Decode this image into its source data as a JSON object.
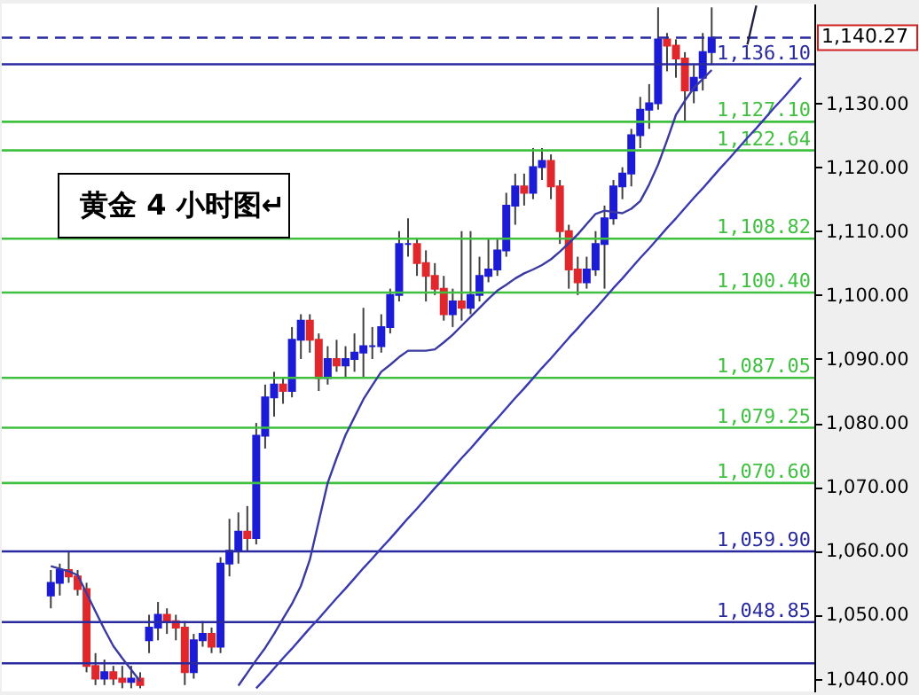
{
  "chart_data": {
    "type": "candlestick",
    "annotations": [
      "黄金 4 小时图↵"
    ],
    "categories": [
      null,
      null,
      null,
      null,
      null,
      null,
      null,
      null,
      null,
      null,
      null,
      null,
      null,
      null,
      null,
      null,
      null,
      null,
      null,
      null,
      null,
      null,
      null,
      null,
      null,
      null,
      null,
      null,
      null,
      null,
      null,
      null,
      null,
      null,
      null,
      null,
      null,
      null,
      null,
      null,
      null,
      null,
      null,
      null,
      null,
      null,
      null,
      null,
      null,
      null,
      null,
      null,
      null,
      null,
      null,
      null,
      null,
      null,
      null,
      null,
      null,
      null,
      null,
      null,
      null,
      null,
      null,
      null,
      null,
      null,
      null,
      null,
      null,
      null,
      null,
      null,
      null,
      null,
      null,
      null,
      null,
      null,
      null,
      null,
      null,
      null,
      null,
      null,
      null
    ],
    "ohlc": [
      null,
      null,
      null,
      null,
      [
        1053,
        1057,
        1051,
        1055
      ],
      [
        1055,
        1058,
        1053,
        1057
      ],
      [
        1057,
        1060,
        1055,
        1056
      ],
      [
        1056,
        1057,
        1053,
        1054
      ],
      [
        1054,
        1055,
        1041,
        1042
      ],
      [
        1042,
        1044,
        1039,
        1040
      ],
      [
        1040,
        1043,
        1039,
        1041
      ],
      [
        1041,
        1042,
        1039,
        1040
      ],
      [
        1040,
        1042,
        1038.5,
        1039.5
      ],
      [
        1039.5,
        1042,
        1038.5,
        1040
      ],
      [
        1040,
        1041,
        1038.5,
        1039
      ],
      [
        1046,
        1050,
        1044,
        1048
      ],
      [
        1048,
        1052,
        1046,
        1050
      ],
      [
        1050,
        1051,
        1047,
        1049
      ],
      [
        1049,
        1050,
        1046,
        1048
      ],
      [
        1048,
        1049,
        1039,
        1041
      ],
      [
        1041,
        1047,
        1040,
        1046
      ],
      [
        1046,
        1049,
        1045,
        1047
      ],
      [
        1047,
        1048,
        1044,
        1045
      ],
      [
        1045,
        1059,
        1044,
        1058
      ],
      [
        1058,
        1065,
        1056,
        1060
      ],
      [
        1060,
        1066,
        1058,
        1063
      ],
      [
        1063,
        1067,
        1060,
        1062
      ],
      [
        1062,
        1080,
        1061,
        1078
      ],
      [
        1078,
        1086,
        1076,
        1084
      ],
      [
        1084,
        1088,
        1081,
        1086
      ],
      [
        1086,
        1087,
        1083,
        1085
      ],
      [
        1085,
        1095,
        1084,
        1093
      ],
      [
        1093,
        1097,
        1090,
        1096
      ],
      [
        1096,
        1097,
        1091,
        1093
      ],
      [
        1093,
        1094,
        1085,
        1087
      ],
      [
        1087,
        1092,
        1086,
        1090
      ],
      [
        1090,
        1093,
        1088,
        1089
      ],
      [
        1089,
        1092,
        1087,
        1090
      ],
      [
        1090,
        1094,
        1088,
        1091
      ],
      [
        1091,
        1098,
        1087,
        1092
      ],
      [
        1092,
        1095,
        1090,
        1092
      ],
      [
        1092,
        1097,
        1091,
        1095
      ],
      [
        1095,
        1101,
        1094,
        1100
      ],
      [
        1100,
        1110,
        1099,
        1108
      ],
      [
        1108,
        1112,
        1106,
        1108
      ],
      [
        1108,
        1109,
        1103,
        1105
      ],
      [
        1105,
        1107,
        1099,
        1103
      ],
      [
        1103,
        1105,
        1100,
        1101
      ],
      [
        1101,
        1103,
        1096,
        1097
      ],
      [
        1097,
        1101,
        1095,
        1099
      ],
      [
        1099,
        1110,
        1096,
        1098
      ],
      [
        1098,
        1110,
        1097,
        1100
      ],
      [
        1100,
        1106,
        1099,
        1103
      ],
      [
        1103,
        1109,
        1102,
        1104
      ],
      [
        1104,
        1109,
        1103,
        1107
      ],
      [
        1107,
        1116,
        1106,
        1114
      ],
      [
        1114,
        1119,
        1111,
        1117
      ],
      [
        1117,
        1119,
        1114,
        1116
      ],
      [
        1116,
        1123,
        1115,
        1120
      ],
      [
        1120,
        1123,
        1118,
        1121
      ],
      [
        1121,
        1122,
        1115,
        1117
      ],
      [
        1117,
        1118,
        1108,
        1110
      ],
      [
        1110,
        1111,
        1101,
        1104
      ],
      [
        1104,
        1106,
        1100,
        1102
      ],
      [
        1102,
        1106,
        1101,
        1104
      ],
      [
        1104,
        1110,
        1103,
        1108
      ],
      [
        1108,
        1114,
        1101,
        1112
      ],
      [
        1112,
        1118,
        1111,
        1117
      ],
      [
        1117,
        1120,
        1115,
        1119
      ],
      [
        1119,
        1126,
        1117,
        1125
      ],
      [
        1125,
        1131,
        1123,
        1129
      ],
      [
        1129,
        1133,
        1126,
        1130
      ],
      [
        1130,
        1145,
        1129,
        1140
      ],
      [
        1140,
        1141,
        1135,
        1139
      ],
      [
        1139,
        1140,
        1134,
        1137
      ],
      [
        1137,
        1138,
        1127,
        1132
      ],
      [
        1132,
        1136,
        1130,
        1134
      ],
      [
        1134,
        1141,
        1132,
        1138
      ],
      [
        1138,
        1145,
        1136,
        1140.27
      ],
      null,
      null,
      null,
      null,
      null,
      null,
      null,
      null,
      null,
      null
    ],
    "colors": [
      null,
      null,
      null,
      null,
      "#1c1cd6",
      "#1c1cd6",
      "#e0282c",
      "#e0282c",
      "#e0282c",
      "#e0282c",
      "#1c1cd6",
      "#e0282c",
      "#e0282c",
      "#1c1cd6",
      "#e0282c",
      "#1c1cd6",
      "#1c1cd6",
      "#e0282c",
      "#e0282c",
      "#e0282c",
      "#1c1cd6",
      "#1c1cd6",
      "#e0282c",
      "#1c1cd6",
      "#1c1cd6",
      "#1c1cd6",
      "#e0282c",
      "#1c1cd6",
      "#1c1cd6",
      "#1c1cd6",
      "#e0282c",
      "#1c1cd6",
      "#1c1cd6",
      "#e0282c",
      "#e0282c",
      "#1c1cd6",
      "#e0282c",
      "#1c1cd6",
      "#1c1cd6",
      "#1c1cd6",
      "#1c1cd6",
      "#1c1cd6",
      "#1c1cd6",
      "#1c1cd6",
      "#1c1cd6",
      "#e0282c",
      "#e0282c",
      "#e0282c",
      "#e0282c",
      "#1c1cd6",
      "#e0282c",
      "#1c1cd6",
      "#1c1cd6",
      "#1c1cd6",
      "#1c1cd6",
      "#1c1cd6",
      "#1c1cd6",
      "#e0282c",
      "#1c1cd6",
      "#1c1cd6",
      "#e0282c",
      "#e0282c",
      "#e0282c",
      "#e0282c",
      "#1c1cd6",
      "#1c1cd6",
      "#1c1cd6",
      "#1c1cd6",
      "#1c1cd6",
      "#1c1cd6",
      "#1c1cd6",
      "#1c1cd6",
      "#1c1cd6",
      "#e0282c",
      "#e0282c",
      "#e0282c",
      "#1c1cd6",
      "#1c1cd6",
      "#1c1cd6",
      null,
      null,
      null,
      null,
      null,
      null,
      null,
      null,
      null,
      null
    ],
    "series": [
      {
        "type": "line",
        "color": "#3a3aa0",
        "values": [
          null,
          null,
          null,
          null,
          1057.6,
          1057.2,
          1056.8,
          1056.2,
          1053.4,
          1050.5,
          1047.7,
          1045.1,
          1043.2,
          1041.4,
          1039.6,
          null,
          null,
          null,
          null,
          null,
          null,
          null,
          null,
          null,
          null,
          1038.9,
          1040.9,
          1042.9,
          1044.8,
          1047.0,
          1049.4,
          1051.7,
          1054.5,
          1058.6,
          1064.6,
          1070.6,
          1074.5,
          1078.1,
          1080.9,
          1083.7,
          1085.9,
          1088.0,
          1089.1,
          1090.3,
          1091.3,
          1091.3,
          1091.3,
          1091.5,
          1092.6,
          1093.8,
          1095.2,
          1096.6,
          1098.0,
          1099.4,
          1100.7,
          1101.6,
          1102.6,
          1103.4,
          1104.0,
          1104.7,
          1105.6,
          1106.8,
          1108.1,
          1109.5,
          1111.1,
          1112.7,
          1113.2,
          1113.0,
          1112.8,
          1113.5,
          1114.7,
          1117.3,
          1120.4,
          1124.2,
          1128.2,
          1130.4,
          1132.4,
          1133.8,
          1135.2,
          null,
          null,
          null,
          null,
          null,
          null,
          null,
          null,
          null,
          null
        ]
      },
      {
        "type": "line",
        "color": "#3a3ab0",
        "values": [
          null,
          null,
          null,
          null,
          null,
          null,
          null,
          null,
          null,
          null,
          null,
          null,
          null,
          null,
          null,
          null,
          null,
          null,
          null,
          null,
          null,
          null,
          null,
          null,
          null,
          null,
          null,
          1038.5,
          1040.0,
          1041.6,
          1043.2,
          1044.7,
          1046.3,
          1047.9,
          1049.4,
          1051.0,
          1052.6,
          1054.1,
          1055.7,
          1057.3,
          1058.8,
          1060.4,
          1061.9,
          1063.5,
          1065.1,
          1066.6,
          1068.2,
          1069.8,
          1071.3,
          1072.9,
          1074.5,
          1076.0,
          1077.6,
          1079.2,
          1080.7,
          1082.3,
          1083.9,
          1085.4,
          1087.0,
          1088.6,
          1090.1,
          1091.7,
          1093.3,
          1094.8,
          1096.4,
          1097.9,
          1099.5,
          1101.1,
          1102.6,
          1104.2,
          1105.8,
          1107.3,
          1108.9,
          1110.5,
          1112.0,
          1113.6,
          1115.2,
          1116.7,
          1118.3,
          1119.9,
          1121.4,
          1123.0,
          1124.6,
          1126.1,
          1127.7,
          1129.3,
          1130.8,
          1132.4,
          1134.0
        ]
      },
      {
        "type": "line",
        "color": "#202040",
        "values": [
          null,
          null,
          null,
          null,
          null,
          null,
          null,
          null,
          null,
          null,
          null,
          null,
          null,
          null,
          null,
          null,
          null,
          null,
          null,
          null,
          null,
          null,
          null,
          null,
          null,
          null,
          null,
          null,
          null,
          null,
          null,
          null,
          null,
          null,
          null,
          null,
          null,
          null,
          null,
          null,
          null,
          null,
          null,
          null,
          null,
          null,
          null,
          null,
          null,
          null,
          null,
          null,
          null,
          null,
          null,
          null,
          null,
          null,
          null,
          null,
          null,
          null,
          null,
          null,
          null,
          null,
          null,
          null,
          null,
          null,
          null,
          null,
          null,
          null,
          null,
          null,
          null,
          null,
          null,
          null,
          null,
          null,
          1139.2,
          1145.3,
          null,
          null,
          null,
          null,
          null
        ]
      }
    ],
    "ref_lines": [
      {
        "axis": "y",
        "value": 1140.27,
        "label": "1,140.27",
        "color": "#2a2aa0",
        "line_style": "dashed"
      },
      {
        "axis": "y",
        "value": 1136.1,
        "label": "1,136.10",
        "color": "#2a2aa0"
      },
      {
        "axis": "y",
        "value": 1127.1,
        "label": "1,127.10",
        "color": "#40c040"
      },
      {
        "axis": "y",
        "value": 1122.64,
        "label": "1,122.64",
        "color": "#40c040"
      },
      {
        "axis": "y",
        "value": 1108.82,
        "label": "1,108.82",
        "color": "#40c040"
      },
      {
        "axis": "y",
        "value": 1100.4,
        "label": "1,100.40",
        "color": "#40c040"
      },
      {
        "axis": "y",
        "value": 1087.05,
        "label": "1,087.05",
        "color": "#40c040"
      },
      {
        "axis": "y",
        "value": 1079.25,
        "label": "1,079.25",
        "color": "#40c040"
      },
      {
        "axis": "y",
        "value": 1070.6,
        "label": "1,070.60",
        "color": "#40c040"
      },
      {
        "axis": "y",
        "value": 1059.9,
        "label": "1,059.90",
        "color": "#2a2aa0"
      },
      {
        "axis": "y",
        "value": 1048.85,
        "label": "1,048.85",
        "color": "#2a2aa0"
      },
      {
        "axis": "y",
        "value": 1042.4,
        "label": null,
        "color": "#2a2aa0"
      }
    ],
    "ylim": [
      1038,
      1145.6
    ],
    "yticks": [
      {
        "value": 1040,
        "label": "1,040.00"
      },
      {
        "value": 1050,
        "label": "1,050.00"
      },
      {
        "value": 1060,
        "label": "1,060.00"
      },
      {
        "value": 1070,
        "label": "1,070.00"
      },
      {
        "value": 1080,
        "label": "1,080.00"
      },
      {
        "value": 1090,
        "label": "1,090.00"
      },
      {
        "value": 1100,
        "label": "1,100.00"
      },
      {
        "value": 1110,
        "label": "1,110.00"
      },
      {
        "value": 1120,
        "label": "1,120.00"
      },
      {
        "value": 1130,
        "label": "1,130.00"
      }
    ],
    "tick_labels": "y",
    "grid": false
  }
}
